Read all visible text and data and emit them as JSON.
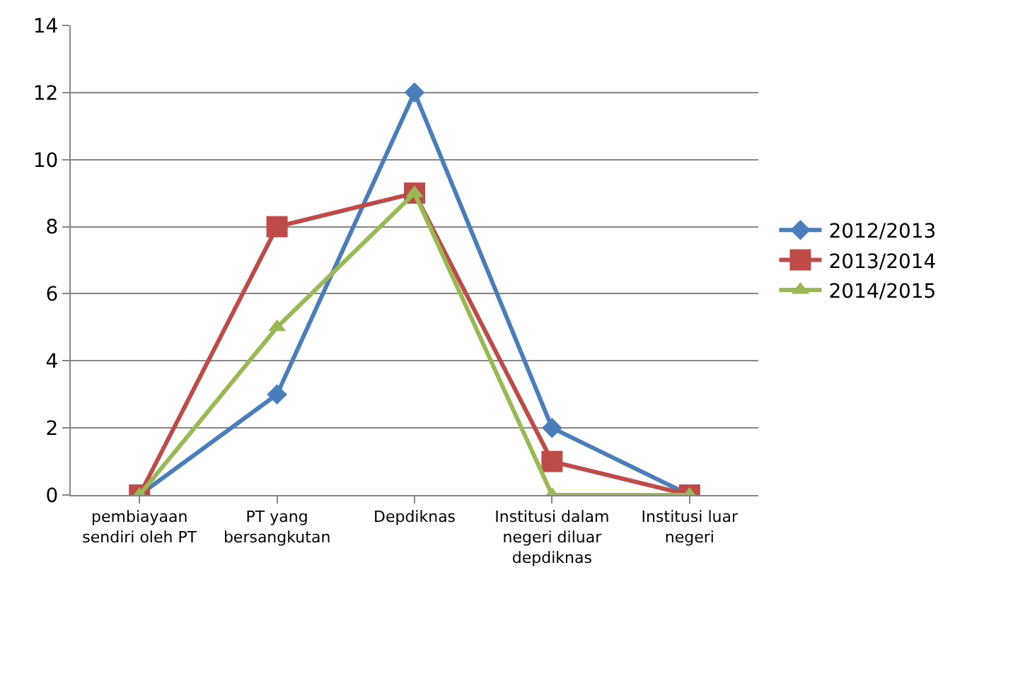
{
  "chart_data": {
    "type": "line",
    "categories": [
      "pembiayaan sendiri oleh PT",
      "PT yang bersangkutan",
      "Depdiknas",
      "Institusi dalam negeri diluar depdiknas",
      "Institusi luar negeri"
    ],
    "series": [
      {
        "name": "2012/2013",
        "color": "#4a7ebb",
        "marker": "diamond",
        "values": [
          0,
          3,
          12,
          2,
          0
        ]
      },
      {
        "name": "2013/2014",
        "color": "#be4b48",
        "marker": "square",
        "values": [
          0,
          8,
          9,
          1,
          0
        ]
      },
      {
        "name": "2014/2015",
        "color": "#98b954",
        "marker": "triangle",
        "values": [
          0,
          5,
          9,
          0,
          0
        ]
      }
    ],
    "ylim": [
      0,
      14
    ],
    "yticks": [
      0,
      2,
      4,
      6,
      8,
      10,
      12,
      14
    ],
    "grid": "y",
    "legend": "right",
    "line_style": "solid"
  }
}
